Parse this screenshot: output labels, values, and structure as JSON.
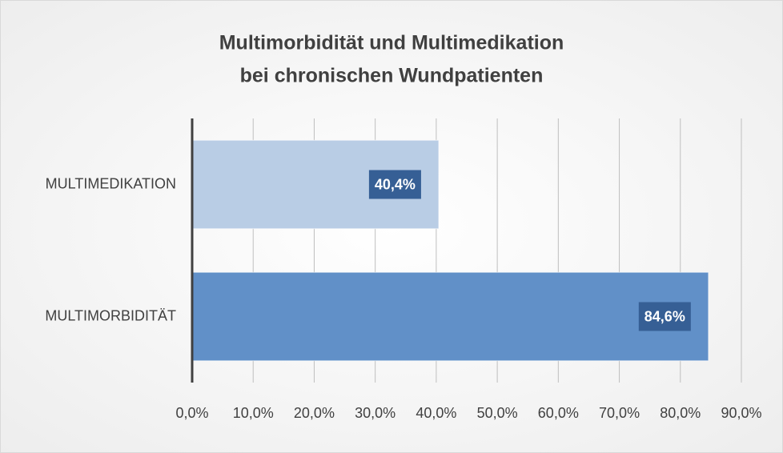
{
  "chart_data": {
    "type": "barh",
    "title": [
      "Multimorbidität und Multimedikation",
      "bei chronischen Wundpatienten"
    ],
    "categories": [
      "MULTIMEDIKATION",
      "MULTIMORBIDITÄT"
    ],
    "values": [
      40.4,
      84.6
    ],
    "value_labels": [
      "40,4%",
      "84,6%"
    ],
    "colors": [
      "#b9cde5",
      "#6190c8"
    ],
    "xlim": [
      0,
      90
    ],
    "xticks": [
      {
        "value": 0,
        "label": "0,0%"
      },
      {
        "value": 10,
        "label": "10,0%"
      },
      {
        "value": 20,
        "label": "20,0%"
      },
      {
        "value": 30,
        "label": "30,0%"
      },
      {
        "value": 40,
        "label": "40,0%"
      },
      {
        "value": 50,
        "label": "50,0%"
      },
      {
        "value": 60,
        "label": "60,0%"
      },
      {
        "value": 70,
        "label": "70,0%"
      },
      {
        "value": 80,
        "label": "80,0%"
      },
      {
        "value": 90,
        "label": "90,0%"
      }
    ],
    "grid": true
  }
}
